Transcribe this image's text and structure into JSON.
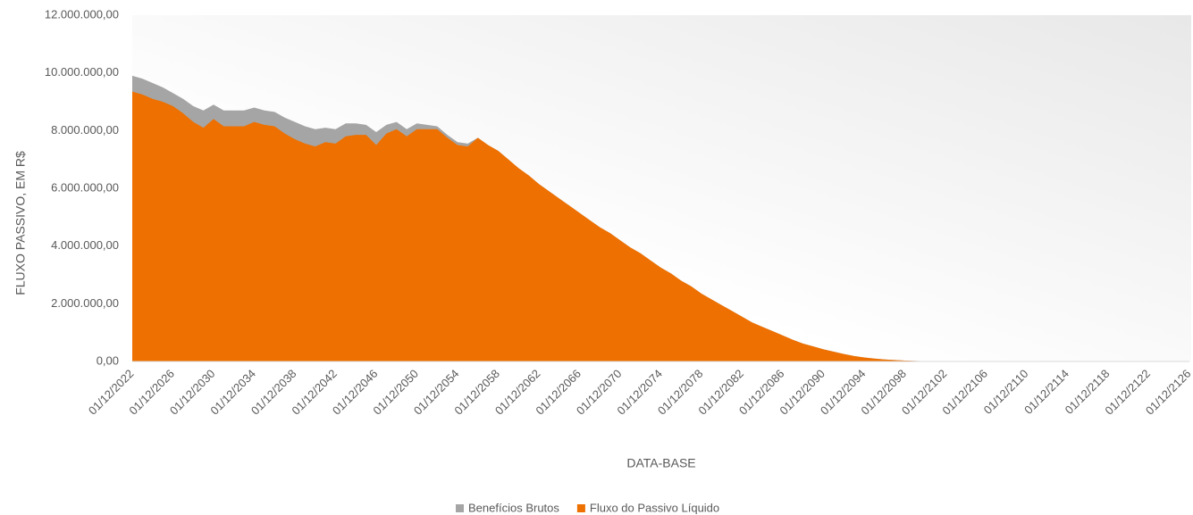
{
  "chart_data": {
    "type": "area",
    "x_label": "DATA-BASE",
    "y_label": "FLUXO PASSIVO, EM R$",
    "categories": [
      "01/12/2022",
      null,
      null,
      null,
      "01/12/2026",
      null,
      null,
      null,
      "01/12/2030",
      null,
      null,
      null,
      "01/12/2034",
      null,
      null,
      null,
      "01/12/2038",
      null,
      null,
      null,
      "01/12/2042",
      null,
      null,
      null,
      "01/12/2046",
      null,
      null,
      null,
      "01/12/2050",
      null,
      null,
      null,
      "01/12/2054",
      null,
      null,
      null,
      "01/12/2058",
      null,
      null,
      null,
      "01/12/2062",
      null,
      null,
      null,
      "01/12/2066",
      null,
      null,
      null,
      "01/12/2070",
      null,
      null,
      null,
      "01/12/2074",
      null,
      null,
      null,
      "01/12/2078",
      null,
      null,
      null,
      "01/12/2082",
      null,
      null,
      null,
      "01/12/2086",
      null,
      null,
      null,
      "01/12/2090",
      null,
      null,
      null,
      "01/12/2094",
      null,
      null,
      null,
      "01/12/2098",
      null,
      null,
      null,
      "01/12/2102",
      null,
      null,
      null,
      "01/12/2106",
      null,
      null,
      null,
      "01/12/2110",
      null,
      null,
      null,
      "01/12/2114",
      null,
      null,
      null,
      "01/12/2118",
      null,
      null,
      null,
      "01/12/2122",
      null,
      null,
      null,
      "01/12/2126"
    ],
    "series": [
      {
        "name": "Benefícios Brutos",
        "color": "#a5a5a5",
        "values": [
          9900000,
          9800000,
          9650000,
          9500000,
          9300000,
          9100000,
          8850000,
          8700000,
          8900000,
          8700000,
          8700000,
          8700000,
          8800000,
          8700000,
          8650000,
          8450000,
          8300000,
          8150000,
          8050000,
          8100000,
          8050000,
          8250000,
          8250000,
          8200000,
          7950000,
          8200000,
          8300000,
          8050000,
          8250000,
          8200000,
          8150000,
          7850000,
          7600000,
          7550000,
          7750000,
          7500000,
          7300000,
          7000000,
          6700000,
          6450000,
          6150000,
          5900000,
          5650000,
          5400000,
          5150000,
          4900000,
          4650000,
          4450000,
          4200000,
          3950000,
          3750000,
          3500000,
          3250000,
          3050000,
          2800000,
          2600000,
          2350000,
          2150000,
          1950000,
          1750000,
          1550000,
          1350000,
          1200000,
          1050000,
          900000,
          750000,
          620000,
          520000,
          420000,
          340000,
          260000,
          190000,
          140000,
          100000,
          70000,
          50000,
          30000,
          20000,
          10000,
          0,
          0,
          0,
          0,
          0,
          0,
          0,
          0,
          0,
          0,
          0,
          0,
          0,
          0,
          0,
          0,
          0,
          0,
          0,
          0,
          0,
          0,
          0,
          0,
          0,
          0
        ]
      },
      {
        "name": "Fluxo do Passivo Líquido",
        "color": "#ed7000",
        "values": [
          9350000,
          9250000,
          9100000,
          9000000,
          8850000,
          8600000,
          8300000,
          8100000,
          8400000,
          8150000,
          8150000,
          8150000,
          8300000,
          8200000,
          8150000,
          7900000,
          7700000,
          7550000,
          7450000,
          7600000,
          7550000,
          7800000,
          7850000,
          7850000,
          7500000,
          7900000,
          8050000,
          7800000,
          8050000,
          8050000,
          8050000,
          7750000,
          7500000,
          7450000,
          7750000,
          7500000,
          7300000,
          7000000,
          6700000,
          6450000,
          6150000,
          5900000,
          5650000,
          5400000,
          5150000,
          4900000,
          4650000,
          4450000,
          4200000,
          3950000,
          3750000,
          3500000,
          3250000,
          3050000,
          2800000,
          2600000,
          2350000,
          2150000,
          1950000,
          1750000,
          1550000,
          1350000,
          1200000,
          1050000,
          900000,
          750000,
          620000,
          520000,
          420000,
          340000,
          260000,
          190000,
          140000,
          100000,
          70000,
          50000,
          30000,
          20000,
          10000,
          0,
          0,
          0,
          0,
          0,
          0,
          0,
          0,
          0,
          0,
          0,
          0,
          0,
          0,
          0,
          0,
          0,
          0,
          0,
          0,
          0,
          0,
          0,
          0,
          0,
          0
        ]
      }
    ],
    "ylim": [
      0,
      12000000
    ],
    "yticks": [
      {
        "value": 0,
        "label": "0,00"
      },
      {
        "value": 2000000,
        "label": "2.000.000,00"
      },
      {
        "value": 4000000,
        "label": "4.000.000,00"
      },
      {
        "value": 6000000,
        "label": "6.000.000,00"
      },
      {
        "value": 8000000,
        "label": "8.000.000,00"
      },
      {
        "value": 10000000,
        "label": "10.000.000,00"
      },
      {
        "value": 12000000,
        "label": "12.000.000,00"
      }
    ],
    "legend": "bottom"
  }
}
